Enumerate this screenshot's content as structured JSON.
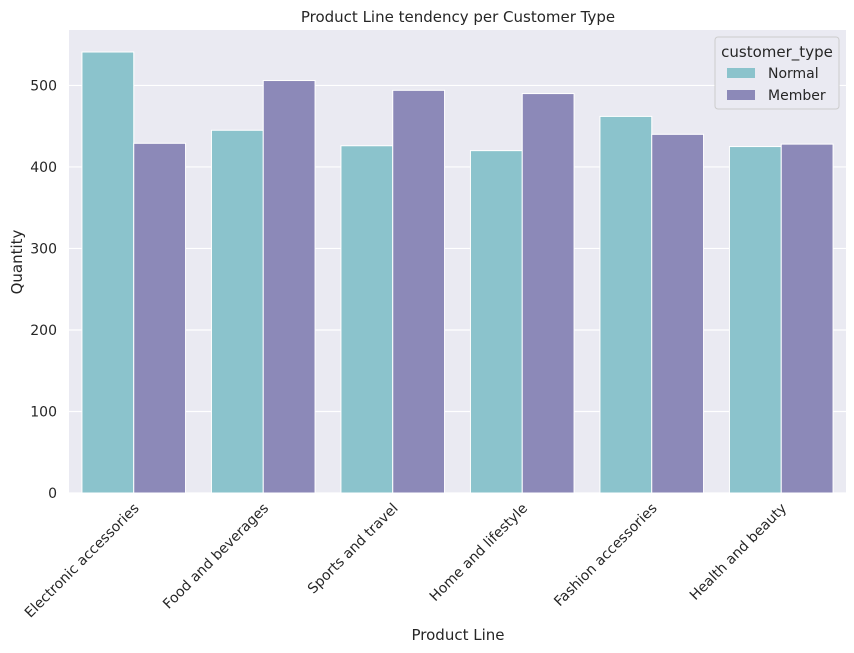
{
  "chart_data": {
    "type": "bar",
    "title": "Product Line tendency per Customer Type",
    "xlabel": "Product Line",
    "ylabel": "Quantity",
    "categories": [
      "Electronic accessories",
      "Food and beverages",
      "Sports and travel",
      "Home and lifestyle",
      "Fashion accessories",
      "Health and beauty"
    ],
    "series": [
      {
        "name": "Normal",
        "color": "#8bc3cc",
        "values": [
          541,
          445,
          426,
          420,
          462,
          425
        ]
      },
      {
        "name": "Member",
        "color": "#8c89b8",
        "values": [
          429,
          506,
          494,
          490,
          440,
          428
        ]
      }
    ],
    "yticks": [
      0,
      100,
      200,
      300,
      400,
      500
    ],
    "ylim": [
      0,
      568
    ],
    "grid": true,
    "background": "#eaeaf2",
    "legend": {
      "title": "customer_type",
      "placement": "top-right"
    }
  }
}
